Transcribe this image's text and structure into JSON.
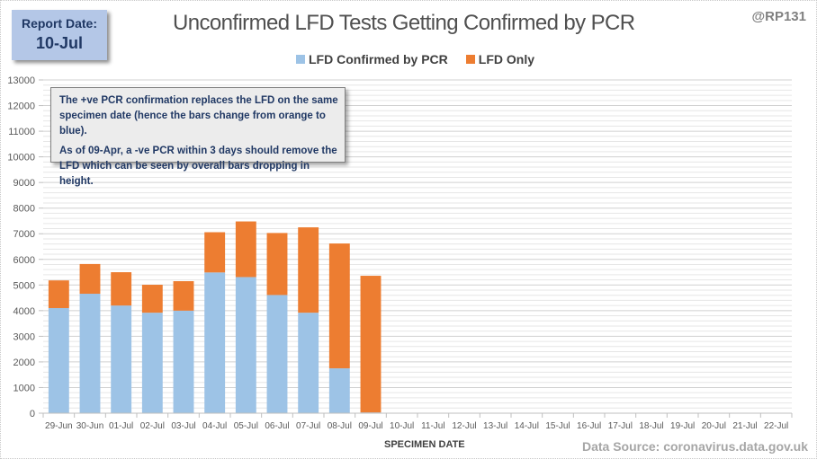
{
  "report": {
    "label": "Report Date:",
    "value": "10-Jul"
  },
  "handle": "@RP131",
  "note": {
    "line1": "The +ve PCR confirmation replaces the LFD on the same specimen date (hence the bars change from orange to blue).",
    "line2": "As of 09-Apr, a -ve PCR within 3 days should remove the LFD which can be seen by overall bars dropping  in height."
  },
  "source": "Data Source: coronavirus.data.gov.uk",
  "colors": {
    "confirmed": "#9dc3e6",
    "lfd_only": "#ed7d31",
    "grid_major": "#d0d0d0",
    "grid_minor": "#e6e6e6"
  },
  "chart_data": {
    "type": "bar",
    "stacked": true,
    "title": "Unconfirmed LFD Tests Getting Confirmed by PCR",
    "xlabel": "SPECIMEN DATE",
    "ylabel": "",
    "ylim": [
      0,
      13000
    ],
    "yticks": [
      0,
      1000,
      2000,
      3000,
      4000,
      5000,
      6000,
      7000,
      8000,
      9000,
      10000,
      11000,
      12000,
      13000
    ],
    "grid": true,
    "legend_position": "top-center",
    "categories": [
      "29-Jun",
      "30-Jun",
      "01-Jul",
      "02-Jul",
      "03-Jul",
      "04-Jul",
      "05-Jul",
      "06-Jul",
      "07-Jul",
      "08-Jul",
      "09-Jul",
      "10-Jul",
      "11-Jul",
      "12-Jul",
      "13-Jul",
      "14-Jul",
      "15-Jul",
      "16-Jul",
      "17-Jul",
      "18-Jul",
      "19-Jul",
      "20-Jul",
      "21-Jul",
      "22-Jul"
    ],
    "series": [
      {
        "name": "LFD Confirmed by PCR",
        "values": [
          4100,
          4660,
          4200,
          3920,
          4000,
          5490,
          5310,
          4610,
          3920,
          1750,
          30,
          0,
          0,
          0,
          0,
          0,
          0,
          0,
          0,
          0,
          0,
          0,
          0,
          0
        ]
      },
      {
        "name": "LFD Only",
        "values": [
          1080,
          1160,
          1300,
          1090,
          1150,
          1570,
          2170,
          2420,
          3330,
          4870,
          5330,
          0,
          0,
          0,
          0,
          0,
          0,
          0,
          0,
          0,
          0,
          0,
          0,
          0
        ]
      }
    ]
  }
}
